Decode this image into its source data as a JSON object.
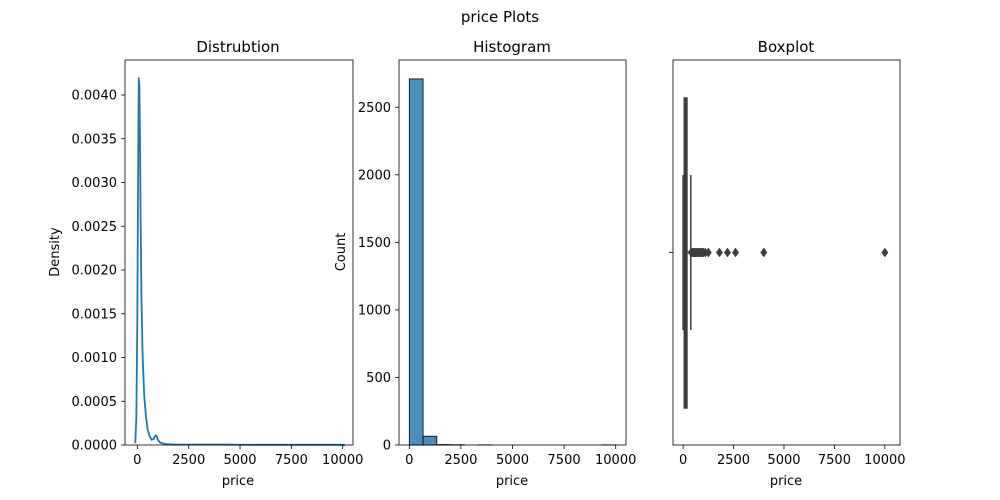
{
  "suptitle": "price Plots",
  "colors": {
    "kde_line": "#1f77b4",
    "hist_fill": "#4c8fbd",
    "hist_edge": "#000000",
    "box": "#3d3d3d"
  },
  "chart_data": [
    {
      "type": "line",
      "title": "Distrubtion",
      "xlabel": "price",
      "ylabel": "Density",
      "xlim": [
        -600,
        10500
      ],
      "ylim": [
        0,
        0.0044
      ],
      "xticks": [
        0,
        2500,
        5000,
        7500,
        10000
      ],
      "xtick_labels": [
        "0",
        "2500",
        "5000",
        "7500",
        "10000"
      ],
      "yticks": [
        0,
        0.0005,
        0.001,
        0.0015,
        0.002,
        0.0025,
        0.003,
        0.0035,
        0.004
      ],
      "ytick_labels": [
        "0.0000",
        "0.0005",
        "0.0010",
        "0.0015",
        "0.0020",
        "0.0025",
        "0.0030",
        "0.0035",
        "0.0040"
      ],
      "series": [
        {
          "x": [
            -100,
            -50,
            0,
            40,
            70,
            100,
            130,
            160,
            200,
            260,
            340,
            420,
            500,
            600,
            700,
            800,
            850,
            900,
            950,
            1000,
            1100,
            1200,
            1400,
            1800,
            2500,
            3000,
            4000,
            5000,
            6000,
            7000,
            8000,
            9000,
            10000,
            10100
          ],
          "y": [
            2e-05,
            0.0003,
            0.0014,
            0.0032,
            0.0042,
            0.0041,
            0.0035,
            0.0026,
            0.0017,
            0.001,
            0.00055,
            0.00033,
            0.00018,
            0.0001,
            6e-05,
            7e-05,
            0.0001,
            0.00011,
            0.0001,
            6e-05,
            3e-05,
            2e-05,
            1e-05,
            5e-06,
            4e-06,
            6e-06,
            5e-06,
            3e-06,
            2e-06,
            2e-06,
            2e-06,
            2e-06,
            2e-06,
            0.0
          ]
        }
      ]
    },
    {
      "type": "bar",
      "title": "Histogram",
      "xlabel": "price",
      "ylabel": "Count",
      "xlim": [
        -500,
        10500
      ],
      "ylim": [
        0,
        2850
      ],
      "xticks": [
        0,
        2500,
        5000,
        7500,
        10000
      ],
      "xtick_labels": [
        "0",
        "2500",
        "5000",
        "7500",
        "10000"
      ],
      "yticks": [
        0,
        500,
        1000,
        1500,
        2000,
        2500
      ],
      "ytick_labels": [
        "0",
        "500",
        "1000",
        "1500",
        "2000",
        "2500"
      ],
      "bins": [
        {
          "x0": 0,
          "x1": 667,
          "count": 2710
        },
        {
          "x0": 667,
          "x1": 1333,
          "count": 65
        },
        {
          "x0": 1333,
          "x1": 2000,
          "count": 3
        },
        {
          "x0": 2000,
          "x1": 2667,
          "count": 2
        },
        {
          "x0": 3333,
          "x1": 4000,
          "count": 1
        },
        {
          "x0": 9333,
          "x1": 10000,
          "count": 1
        }
      ]
    },
    {
      "type": "box",
      "title": "Boxplot",
      "xlabel": "price",
      "ylabel": "",
      "xlim": [
        -500,
        10750
      ],
      "xticks": [
        0,
        2500,
        5000,
        7500,
        10000
      ],
      "xtick_labels": [
        "0",
        "2500",
        "5000",
        "7500",
        "10000"
      ],
      "box": {
        "q1": 60,
        "median": 100,
        "q3": 190,
        "whisker_low": 0,
        "whisker_high": 380
      },
      "outliers": [
        400,
        450,
        500,
        540,
        580,
        620,
        660,
        700,
        750,
        800,
        850,
        900,
        950,
        1000,
        1100,
        1250,
        1800,
        2200,
        2600,
        4000,
        10000
      ]
    }
  ]
}
